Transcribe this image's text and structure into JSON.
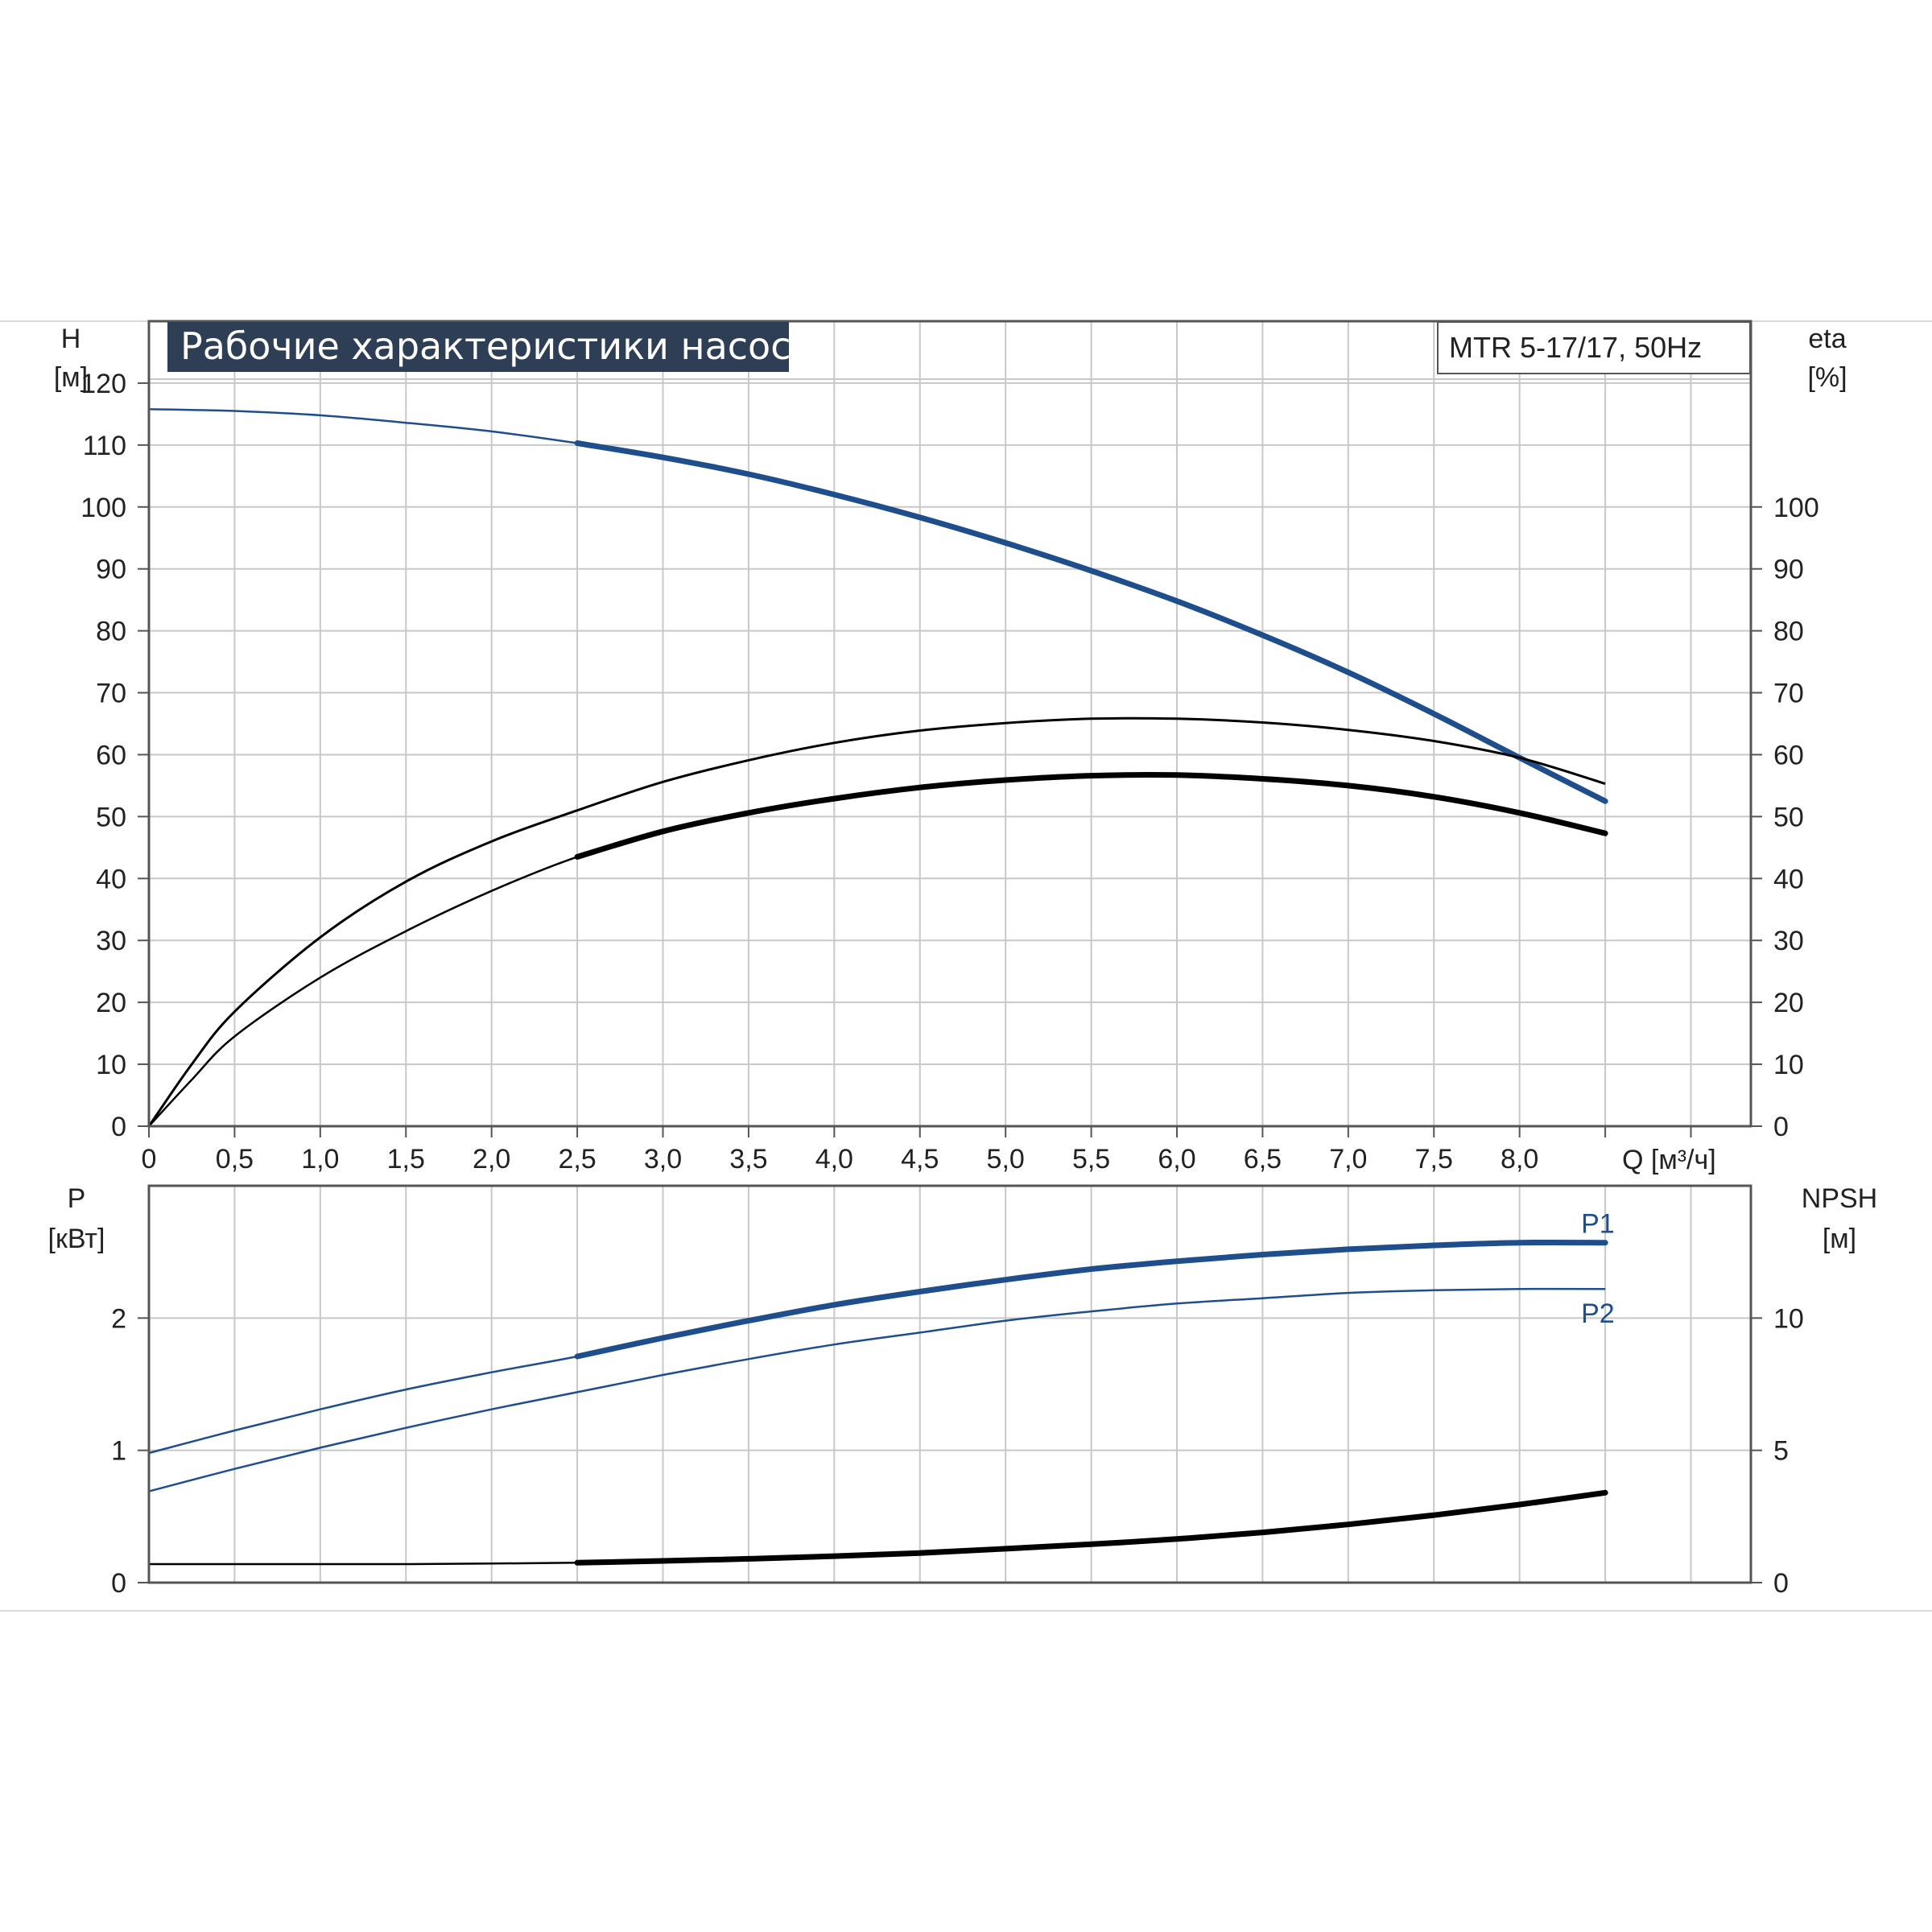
{
  "chart_data": [
    {
      "type": "line",
      "title": "Рабочие характеристики насоса",
      "model_label": "MTR 5-17/17, 50Hz",
      "xlabel": "Q [м³/ч]",
      "ylabel_left": "H",
      "ylabel_left_unit": "[м]",
      "ylabel_right": "eta",
      "ylabel_right_unit": "[%]",
      "xlim": [
        0,
        9.35
      ],
      "ylim_left": [
        0,
        130
      ],
      "ylim_right": [
        0,
        130
      ],
      "x_ticks": [
        "0",
        "0,5",
        "1,0",
        "1,5",
        "2,0",
        "2,5",
        "3,0",
        "3,5",
        "4,0",
        "4,5",
        "5,0",
        "5,5",
        "6,0",
        "6,5",
        "7,0",
        "7,5",
        "8,0"
      ],
      "y_ticks_left": [
        "0",
        "10",
        "20",
        "30",
        "40",
        "50",
        "60",
        "70",
        "80",
        "90",
        "100",
        "110",
        "120"
      ],
      "y_ticks_right": [
        "0",
        "10",
        "20",
        "30",
        "40",
        "50",
        "60",
        "70",
        "80",
        "90",
        "100"
      ],
      "grid": true,
      "series": [
        {
          "color": "#1f4e8c",
          "x": [
            0,
            0.5,
            1.0,
            1.5,
            2.0,
            2.5,
            3.0,
            3.5,
            4.0,
            4.5,
            5.0,
            5.5,
            6.0,
            6.5,
            7.0,
            7.5,
            8.0,
            8.5
          ],
          "y": [
            115.8,
            115.5,
            114.8,
            113.6,
            112.2,
            110.3,
            108,
            105.3,
            102,
            98.3,
            94.2,
            89.7,
            84.8,
            79.3,
            73.3,
            66.6,
            59.5,
            52.5
          ]
        },
        {
          "color": "#000000",
          "x": [
            0,
            0.25,
            0.5,
            1.0,
            1.5,
            2.0,
            2.5,
            3.0,
            3.5,
            4.0,
            4.5,
            5.0,
            5.5,
            6.0,
            6.5,
            7.0,
            7.5,
            8.0,
            8.5
          ],
          "y": [
            0,
            10,
            18.5,
            30.5,
            39.5,
            46,
            51,
            55.6,
            59.1,
            61.9,
            63.9,
            65.1,
            65.8,
            65.8,
            65.2,
            64,
            62.2,
            59.5,
            55.3
          ]
        },
        {
          "color": "#000000",
          "x": [
            0,
            0.25,
            0.5,
            1.0,
            1.5,
            2.0,
            2.5,
            3.0,
            3.5,
            4.0,
            4.5,
            5.0,
            5.5,
            6.0,
            6.5,
            7.0,
            7.5,
            8.0,
            8.5
          ],
          "y": [
            0,
            7.5,
            14.5,
            24,
            31.5,
            38,
            43.5,
            47.6,
            50.6,
            52.9,
            54.7,
            55.9,
            56.6,
            56.7,
            56.1,
            55,
            53.2,
            50.6,
            47.3
          ]
        }
      ]
    },
    {
      "type": "line",
      "ylabel_left": "P",
      "ylabel_left_unit": "[кВт]",
      "ylabel_right": "NPSH",
      "ylabel_right_unit": "[м]",
      "xlim": [
        0,
        9.35
      ],
      "ylim_left": [
        0,
        3
      ],
      "ylim_right": [
        0,
        15
      ],
      "y_ticks_left": [
        "0",
        "1",
        "2"
      ],
      "y_ticks_right": [
        "0",
        "5",
        "10"
      ],
      "grid": true,
      "series": [
        {
          "name": "P1",
          "color": "#1f4e8c",
          "x": [
            0,
            0.5,
            1.0,
            1.5,
            2.0,
            2.5,
            3.0,
            3.5,
            4.0,
            4.5,
            5.0,
            5.5,
            6.0,
            6.5,
            7.0,
            7.5,
            8.0,
            8.5
          ],
          "y": [
            0.98,
            1.15,
            1.31,
            1.46,
            1.59,
            1.71,
            1.85,
            1.98,
            2.1,
            2.2,
            2.29,
            2.37,
            2.43,
            2.48,
            2.52,
            2.55,
            2.57,
            2.57
          ]
        },
        {
          "name": "P2",
          "color": "#1f4e8c",
          "x": [
            0,
            0.5,
            1.0,
            1.5,
            2.0,
            2.5,
            3.0,
            3.5,
            4.0,
            4.5,
            5.0,
            5.5,
            6.0,
            6.5,
            7.0,
            7.5,
            8.0,
            8.5
          ],
          "y": [
            0.69,
            0.86,
            1.02,
            1.17,
            1.31,
            1.44,
            1.57,
            1.69,
            1.8,
            1.89,
            1.98,
            2.05,
            2.11,
            2.15,
            2.19,
            2.21,
            2.22,
            2.22
          ]
        },
        {
          "color": "#000000",
          "axis": "right",
          "x": [
            0,
            0.5,
            1.0,
            1.5,
            2.0,
            2.5,
            3.0,
            3.5,
            4.0,
            4.5,
            5.0,
            5.5,
            6.0,
            6.5,
            7.0,
            7.5,
            8.0,
            8.5
          ],
          "y": [
            0.7,
            0.7,
            0.7,
            0.7,
            0.72,
            0.75,
            0.82,
            0.9,
            1.0,
            1.12,
            1.28,
            1.45,
            1.65,
            1.9,
            2.2,
            2.55,
            2.95,
            3.4
          ]
        }
      ]
    }
  ]
}
